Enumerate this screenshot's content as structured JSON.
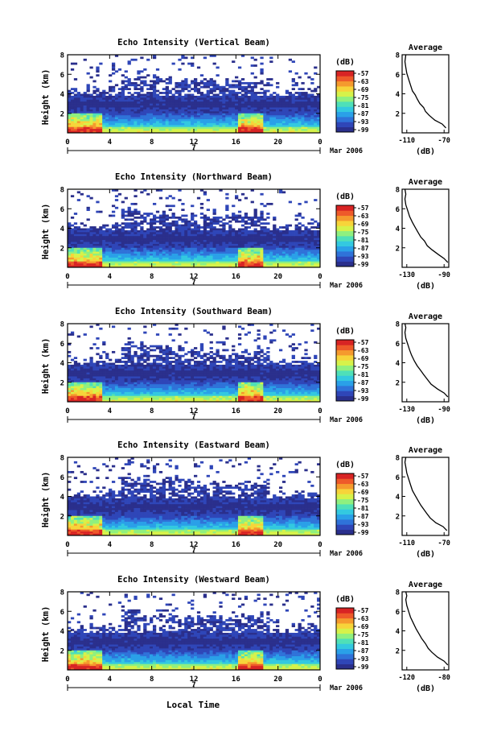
{
  "footer": {
    "xaxis_label": "Local Time"
  },
  "colorbar": {
    "unit_label": "(dB)",
    "ticks": [
      "-57",
      "-63",
      "-69",
      "-75",
      "-81",
      "-87",
      "-93",
      "-99"
    ],
    "colors": [
      "#2a2f8c",
      "#2f46b8",
      "#2f72d9",
      "#2aa0e8",
      "#33c9e0",
      "#4fe0b8",
      "#8ff07f",
      "#d6f24a",
      "#f7d43a",
      "#f59a2e",
      "#ee5a2a",
      "#d82424"
    ]
  },
  "chart_data": [
    {
      "type": "heatmap",
      "title": "Echo Intensity (Vertical Beam)",
      "ylabel": "Height (km)",
      "ylim": [
        0,
        8
      ],
      "yticks": [
        "2",
        "4",
        "6",
        "8"
      ],
      "xticks": [
        "0",
        "4",
        "8",
        "12",
        "16",
        "20",
        "0"
      ],
      "xlim": [
        0,
        24
      ],
      "date_label": "7",
      "month_label": "Mar 2006",
      "color_range": [
        -99,
        -57
      ],
      "profile": {
        "title": "Average",
        "xlabel": "(dB)",
        "xticks": [
          "-110",
          "-70"
        ],
        "xlim": [
          -115,
          -65
        ],
        "yticks": [
          "2",
          "4",
          "6",
          "8"
        ],
        "points": [
          [
            -68,
            0.5
          ],
          [
            -72,
            0.9
          ],
          [
            -80,
            1.3
          ],
          [
            -86,
            1.8
          ],
          [
            -90,
            2.2
          ],
          [
            -92,
            2.6
          ],
          [
            -96,
            3.0
          ],
          [
            -99,
            3.5
          ],
          [
            -101,
            3.9
          ],
          [
            -104,
            4.3
          ],
          [
            -106,
            4.9
          ],
          [
            -108,
            5.5
          ],
          [
            -110,
            6.1
          ],
          [
            -111,
            6.7
          ],
          [
            -112,
            7.3
          ],
          [
            -111,
            8.0
          ]
        ]
      }
    },
    {
      "type": "heatmap",
      "title": "Echo Intensity (Northward Beam)",
      "ylabel": "Height (km)",
      "ylim": [
        0,
        8
      ],
      "yticks": [
        "2",
        "4",
        "6",
        "8"
      ],
      "xticks": [
        "0",
        "4",
        "8",
        "12",
        "16",
        "20",
        "0"
      ],
      "xlim": [
        0,
        24
      ],
      "date_label": "7",
      "month_label": "Mar 2006",
      "color_range": [
        -99,
        -57
      ],
      "profile": {
        "title": "Average",
        "xlabel": "(dB)",
        "xticks": [
          "-130",
          "-90"
        ],
        "xlim": [
          -135,
          -85
        ],
        "yticks": [
          "2",
          "4",
          "6",
          "8"
        ],
        "points": [
          [
            -86,
            0.5
          ],
          [
            -90,
            0.9
          ],
          [
            -96,
            1.3
          ],
          [
            -103,
            1.8
          ],
          [
            -108,
            2.2
          ],
          [
            -111,
            2.7
          ],
          [
            -115,
            3.1
          ],
          [
            -118,
            3.6
          ],
          [
            -121,
            4.1
          ],
          [
            -124,
            4.6
          ],
          [
            -127,
            5.2
          ],
          [
            -129,
            5.8
          ],
          [
            -131,
            6.4
          ],
          [
            -132,
            7.0
          ],
          [
            -131,
            7.5
          ],
          [
            -132,
            8.0
          ]
        ]
      }
    },
    {
      "type": "heatmap",
      "title": "Echo Intensity (Southward Beam)",
      "ylabel": "Height (km)",
      "ylim": [
        0,
        8
      ],
      "yticks": [
        "2",
        "4",
        "6",
        "8"
      ],
      "xticks": [
        "0",
        "4",
        "8",
        "12",
        "16",
        "20",
        "0"
      ],
      "xlim": [
        0,
        24
      ],
      "date_label": "7",
      "month_label": "Mar 2006",
      "color_range": [
        -99,
        -57
      ],
      "profile": {
        "title": "Average",
        "xlabel": "(dB)",
        "xticks": [
          "-130",
          "-90"
        ],
        "xlim": [
          -135,
          -85
        ],
        "yticks": [
          "2",
          "4",
          "6",
          "8"
        ],
        "points": [
          [
            -86,
            0.5
          ],
          [
            -90,
            0.9
          ],
          [
            -97,
            1.3
          ],
          [
            -104,
            1.8
          ],
          [
            -108,
            2.3
          ],
          [
            -112,
            2.8
          ],
          [
            -115,
            3.2
          ],
          [
            -119,
            3.7
          ],
          [
            -122,
            4.2
          ],
          [
            -125,
            4.8
          ],
          [
            -127,
            5.3
          ],
          [
            -129,
            5.9
          ],
          [
            -131,
            6.5
          ],
          [
            -132,
            7.1
          ],
          [
            -131,
            7.6
          ],
          [
            -132,
            8.0
          ]
        ]
      }
    },
    {
      "type": "heatmap",
      "title": "Echo Intensity (Eastward Beam)",
      "ylabel": "Height (km)",
      "ylim": [
        0,
        8
      ],
      "yticks": [
        "2",
        "4",
        "6",
        "8"
      ],
      "xticks": [
        "0",
        "4",
        "8",
        "12",
        "16",
        "20",
        "0"
      ],
      "xlim": [
        0,
        24
      ],
      "date_label": "7",
      "month_label": "Mar 2006",
      "color_range": [
        -99,
        -57
      ],
      "profile": {
        "title": "Average",
        "xlabel": "(dB)",
        "xticks": [
          "-110",
          "-70"
        ],
        "xlim": [
          -115,
          -65
        ],
        "yticks": [
          "2",
          "4",
          "6",
          "8"
        ],
        "points": [
          [
            -67,
            0.5
          ],
          [
            -71,
            0.9
          ],
          [
            -79,
            1.3
          ],
          [
            -85,
            1.8
          ],
          [
            -89,
            2.3
          ],
          [
            -92,
            2.7
          ],
          [
            -95,
            3.1
          ],
          [
            -98,
            3.6
          ],
          [
            -101,
            4.1
          ],
          [
            -104,
            4.6
          ],
          [
            -106,
            5.2
          ],
          [
            -108,
            5.8
          ],
          [
            -110,
            6.4
          ],
          [
            -111,
            7.0
          ],
          [
            -112,
            7.5
          ],
          [
            -111,
            8.0
          ]
        ]
      }
    },
    {
      "type": "heatmap",
      "title": "Echo Intensity (Westward Beam)",
      "ylabel": "Height (km)",
      "ylim": [
        0,
        8
      ],
      "yticks": [
        "2",
        "4",
        "6",
        "8"
      ],
      "xticks": [
        "0",
        "4",
        "8",
        "12",
        "16",
        "20",
        "0"
      ],
      "xlim": [
        0,
        24
      ],
      "date_label": "7",
      "month_label": "Mar 2006",
      "color_range": [
        -99,
        -57
      ],
      "profile": {
        "title": "Average",
        "xlabel": "(dB)",
        "xticks": [
          "-120",
          "-80"
        ],
        "xlim": [
          -125,
          -75
        ],
        "yticks": [
          "2",
          "4",
          "6",
          "8"
        ],
        "points": [
          [
            -76,
            0.5
          ],
          [
            -80,
            0.9
          ],
          [
            -87,
            1.3
          ],
          [
            -93,
            1.8
          ],
          [
            -97,
            2.2
          ],
          [
            -100,
            2.7
          ],
          [
            -104,
            3.2
          ],
          [
            -107,
            3.7
          ],
          [
            -110,
            4.2
          ],
          [
            -113,
            4.8
          ],
          [
            -116,
            5.4
          ],
          [
            -118,
            6.0
          ],
          [
            -120,
            6.6
          ],
          [
            -121,
            7.2
          ],
          [
            -120,
            7.6
          ],
          [
            -121,
            8.0
          ]
        ]
      }
    }
  ]
}
